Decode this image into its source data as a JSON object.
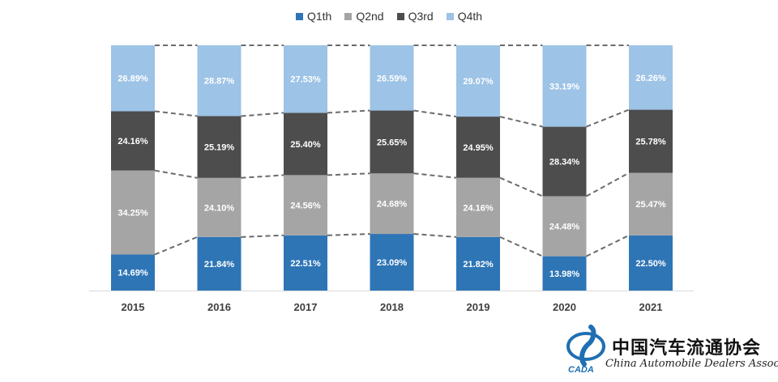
{
  "chart_data": {
    "type": "bar",
    "stacked": true,
    "normalized_percent": true,
    "categories": [
      "2015",
      "2016",
      "2017",
      "2018",
      "2019",
      "2020",
      "2021"
    ],
    "series": [
      {
        "name": "Q1th",
        "color": "#2e75b6",
        "values": [
          14.69,
          21.84,
          22.51,
          23.09,
          21.82,
          13.98,
          22.5
        ],
        "labels": [
          "14.69%",
          "21.84%",
          "22.51%",
          "23.09%",
          "21.82%",
          "13.98%",
          "22.50%"
        ]
      },
      {
        "name": "Q2nd",
        "color": "#a5a5a5",
        "values": [
          34.25,
          24.1,
          24.56,
          24.68,
          24.16,
          24.48,
          25.47
        ],
        "labels": [
          "34.25%",
          "24.10%",
          "24.56%",
          "24.68%",
          "24.16%",
          "24.48%",
          "25.47%"
        ]
      },
      {
        "name": "Q3rd",
        "color": "#4d4d4d",
        "values": [
          24.16,
          25.19,
          25.4,
          25.65,
          24.95,
          28.34,
          25.78
        ],
        "labels": [
          "24.16%",
          "25.19%",
          "25.40%",
          "25.65%",
          "24.95%",
          "28.34%",
          "25.78%"
        ]
      },
      {
        "name": "Q4th",
        "color": "#9dc3e6",
        "values": [
          26.89,
          28.87,
          27.53,
          26.59,
          29.07,
          33.19,
          26.26
        ],
        "labels": [
          "26.89%",
          "28.87%",
          "27.53%",
          "26.59%",
          "29.07%",
          "33.19%",
          "26.26%"
        ]
      }
    ],
    "ylim": [
      0,
      100
    ],
    "title": "",
    "xlabel": "",
    "ylabel": "",
    "grid": false,
    "legend": "top-center",
    "series_lines": "dashed"
  },
  "logo": {
    "name_cn": "中国汽车流通协会",
    "name_en": "China Automobile Dealers Association",
    "mark_text": "CADA",
    "colors": {
      "mark": "#1f6fb2",
      "text": "#111111"
    }
  }
}
